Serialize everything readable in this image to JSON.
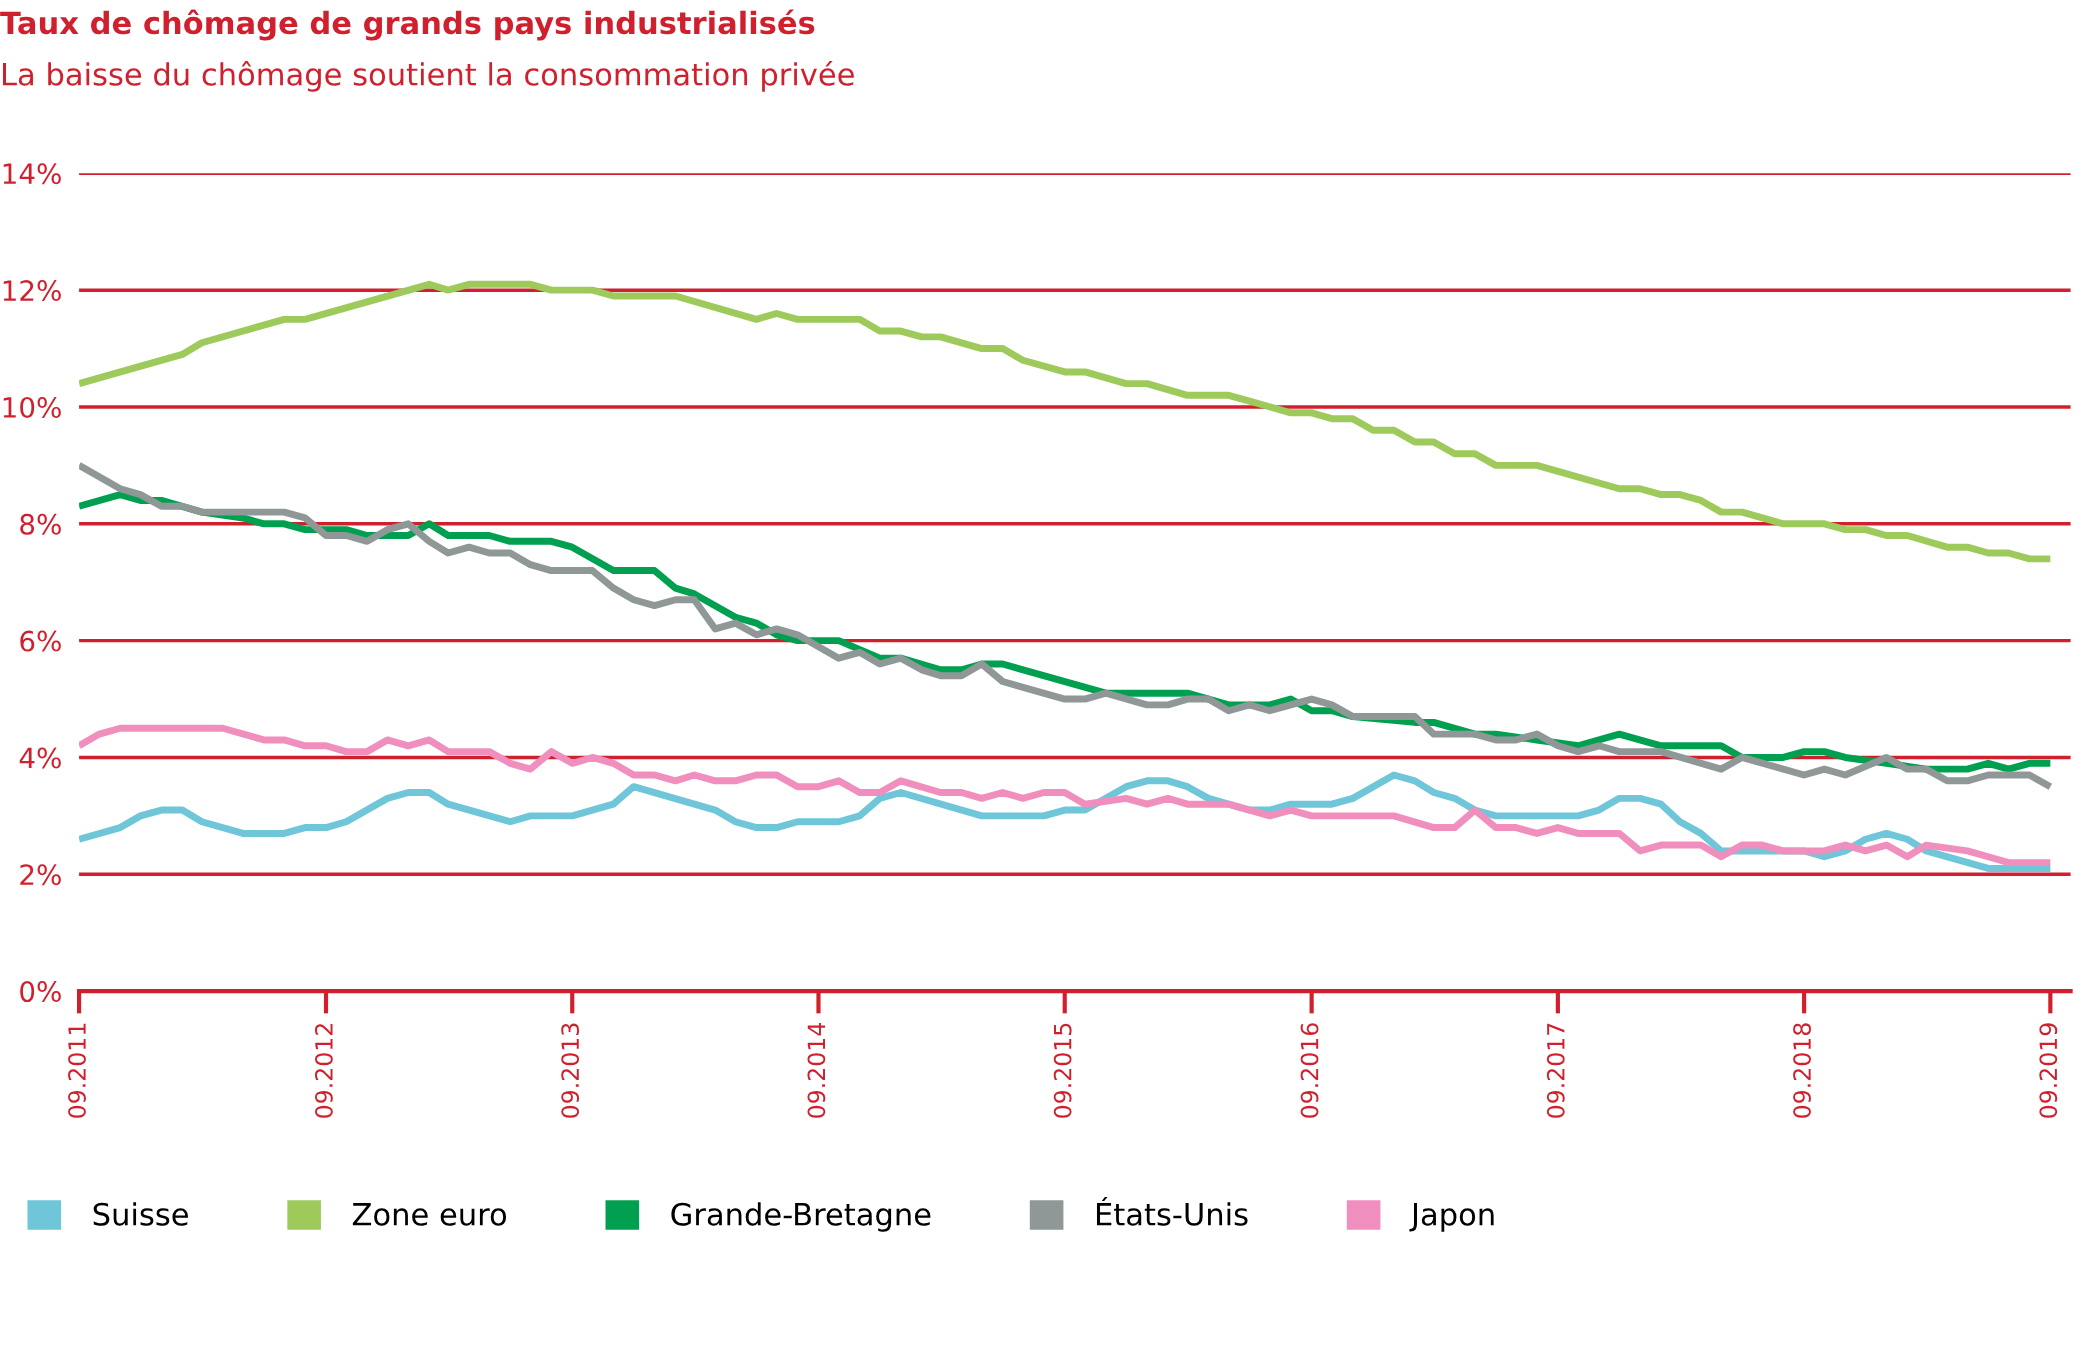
{
  "chart_data": {
    "type": "line",
    "title": "Taux de chômage de grands pays industrialisés",
    "subtitle": "La baisse du chômage soutient la consommation privée",
    "xlim": [
      "2011-09",
      "2019-10"
    ],
    "xticks": [
      {
        "value": "2011-09",
        "label": "09.2011"
      },
      {
        "value": "2012-09",
        "label": "09.2012"
      },
      {
        "value": "2013-09",
        "label": "09.2013"
      },
      {
        "value": "2014-09",
        "label": "09.2014"
      },
      {
        "value": "2015-09",
        "label": "09.2015"
      },
      {
        "value": "2016-09",
        "label": "09.2016"
      },
      {
        "value": "2017-09",
        "label": "09.2017"
      },
      {
        "value": "2018-09",
        "label": "09.2018"
      },
      {
        "value": "2019-09",
        "label": "09.2019"
      }
    ],
    "ylim": [
      0,
      14
    ],
    "yticks": [
      {
        "value": 0,
        "label": "0%"
      },
      {
        "value": 2,
        "label": "2%"
      },
      {
        "value": 4,
        "label": "4%"
      },
      {
        "value": 6,
        "label": "6%"
      },
      {
        "value": 8,
        "label": "8%"
      },
      {
        "value": 10,
        "label": "10%"
      },
      {
        "value": 12,
        "label": "12%"
      },
      {
        "value": 14,
        "label": "14%"
      }
    ],
    "grid": "y",
    "legend": "bottom",
    "marker": "none",
    "line_style": "solid",
    "series": [
      {
        "name": "Suisse",
        "color": "#6ec6d8",
        "x": [
          "2011-09",
          "2011-11",
          "2011-12",
          "2012-01",
          "2012-02",
          "2012-03",
          "2012-05",
          "2012-07",
          "2012-08",
          "2012-09",
          "2012-10",
          "2012-12",
          "2013-01",
          "2013-02",
          "2013-03",
          "2013-06",
          "2013-07",
          "2013-09",
          "2013-11",
          "2013-12",
          "2014-04",
          "2014-05",
          "2014-06",
          "2014-07",
          "2014-08",
          "2014-10",
          "2014-11",
          "2014-12",
          "2015-01",
          "2015-05",
          "2015-08",
          "2015-09",
          "2015-10",
          "2015-12",
          "2016-01",
          "2016-02",
          "2016-03",
          "2016-04",
          "2016-06",
          "2016-07",
          "2016-08",
          "2016-10",
          "2016-11",
          "2017-01",
          "2017-02",
          "2017-03",
          "2017-04",
          "2017-05",
          "2017-06",
          "2017-10",
          "2017-11",
          "2017-12",
          "2018-01",
          "2018-02",
          "2018-03",
          "2018-04",
          "2018-05",
          "2018-09",
          "2018-10",
          "2018-11",
          "2018-12",
          "2019-01",
          "2019-02",
          "2019-03",
          "2019-06",
          "2019-09"
        ],
        "values": [
          2.6,
          2.8,
          3.0,
          3.1,
          3.1,
          2.9,
          2.7,
          2.7,
          2.8,
          2.8,
          2.9,
          3.3,
          3.4,
          3.4,
          3.2,
          2.9,
          3.0,
          3.0,
          3.2,
          3.5,
          3.1,
          2.9,
          2.8,
          2.8,
          2.9,
          2.9,
          3.0,
          3.3,
          3.4,
          3.0,
          3.0,
          3.1,
          3.1,
          3.5,
          3.6,
          3.6,
          3.5,
          3.3,
          3.1,
          3.1,
          3.2,
          3.2,
          3.3,
          3.7,
          3.6,
          3.4,
          3.3,
          3.1,
          3.0,
          3.0,
          3.1,
          3.3,
          3.3,
          3.2,
          2.9,
          2.7,
          2.4,
          2.4,
          2.3,
          2.4,
          2.6,
          2.7,
          2.6,
          2.4,
          2.1,
          2.1
        ]
      },
      {
        "name": "Zone euro",
        "color": "#9dca5a",
        "x": [
          "2011-09",
          "2012-02",
          "2012-03",
          "2012-07",
          "2012-08",
          "2013-02",
          "2013-03",
          "2013-04",
          "2013-07",
          "2013-08",
          "2013-10",
          "2013-11",
          "2014-02",
          "2014-06",
          "2014-07",
          "2014-08",
          "2014-11",
          "2014-12",
          "2015-01",
          "2015-02",
          "2015-03",
          "2015-05",
          "2015-06",
          "2015-07",
          "2015-09",
          "2015-10",
          "2015-12",
          "2016-01",
          "2016-03",
          "2016-05",
          "2016-06",
          "2016-08",
          "2016-09",
          "2016-10",
          "2016-11",
          "2016-12",
          "2017-01",
          "2017-02",
          "2017-03",
          "2017-04",
          "2017-05",
          "2017-06",
          "2017-08",
          "2017-12",
          "2018-01",
          "2018-02",
          "2018-03",
          "2018-04",
          "2018-05",
          "2018-06",
          "2018-08",
          "2018-10",
          "2018-11",
          "2018-12",
          "2019-01",
          "2019-02",
          "2019-04",
          "2019-05",
          "2019-06",
          "2019-07",
          "2019-08",
          "2019-09"
        ],
        "values": [
          10.4,
          10.9,
          11.1,
          11.5,
          11.5,
          12.1,
          12.0,
          12.1,
          12.1,
          12.0,
          12.0,
          11.9,
          11.9,
          11.5,
          11.6,
          11.5,
          11.5,
          11.3,
          11.3,
          11.2,
          11.2,
          11.0,
          11.0,
          10.8,
          10.6,
          10.6,
          10.4,
          10.4,
          10.2,
          10.2,
          10.1,
          9.9,
          9.9,
          9.8,
          9.8,
          9.6,
          9.6,
          9.4,
          9.4,
          9.2,
          9.2,
          9.0,
          9.0,
          8.6,
          8.6,
          8.5,
          8.5,
          8.4,
          8.2,
          8.2,
          8.0,
          8.0,
          7.9,
          7.9,
          7.8,
          7.8,
          7.6,
          7.6,
          7.5,
          7.5,
          7.4,
          7.4
        ]
      },
      {
        "name": "Grande-Bretagne",
        "color": "#00a050",
        "x": [
          "2011-09",
          "2011-11",
          "2011-12",
          "2012-01",
          "2012-03",
          "2012-05",
          "2012-06",
          "2012-07",
          "2012-08",
          "2012-10",
          "2012-11",
          "2013-01",
          "2013-02",
          "2013-03",
          "2013-05",
          "2013-06",
          "2013-08",
          "2013-09",
          "2013-11",
          "2014-01",
          "2014-02",
          "2014-03",
          "2014-05",
          "2014-06",
          "2014-07",
          "2014-08",
          "2014-10",
          "2014-12",
          "2015-01",
          "2015-03",
          "2015-04",
          "2015-05",
          "2015-06",
          "2015-11",
          "2016-03",
          "2016-05",
          "2016-07",
          "2016-08",
          "2016-09",
          "2016-10",
          "2016-11",
          "2017-02",
          "2017-03",
          "2017-05",
          "2017-06",
          "2017-08",
          "2017-10",
          "2017-12",
          "2018-02",
          "2018-05",
          "2018-06",
          "2018-08",
          "2018-09",
          "2018-10",
          "2018-11",
          "2019-01",
          "2019-03",
          "2019-05",
          "2019-06",
          "2019-07",
          "2019-08",
          "2019-09"
        ],
        "values": [
          8.3,
          8.5,
          8.4,
          8.4,
          8.2,
          8.1,
          8.0,
          8.0,
          7.9,
          7.9,
          7.8,
          7.8,
          8.0,
          7.8,
          7.8,
          7.7,
          7.7,
          7.6,
          7.2,
          7.2,
          6.9,
          6.8,
          6.4,
          6.3,
          6.1,
          6.0,
          6.0,
          5.7,
          5.7,
          5.5,
          5.5,
          5.6,
          5.6,
          5.1,
          5.1,
          4.9,
          4.9,
          5.0,
          4.8,
          4.8,
          4.7,
          4.6,
          4.6,
          4.4,
          4.4,
          4.3,
          4.2,
          4.4,
          4.2,
          4.2,
          4.0,
          4.0,
          4.1,
          4.1,
          4.0,
          3.9,
          3.8,
          3.8,
          3.9,
          3.8,
          3.9,
          3.9
        ]
      },
      {
        "name": "États-Unis",
        "color": "#8f9797",
        "x": [
          "2011-09",
          "2011-11",
          "2011-12",
          "2012-01",
          "2012-02",
          "2012-03",
          "2012-07",
          "2012-08",
          "2012-09",
          "2012-10",
          "2012-11",
          "2012-12",
          "2013-01",
          "2013-02",
          "2013-03",
          "2013-04",
          "2013-05",
          "2013-06",
          "2013-07",
          "2013-08",
          "2013-10",
          "2013-11",
          "2013-12",
          "2014-01",
          "2014-02",
          "2014-03",
          "2014-04",
          "2014-05",
          "2014-06",
          "2014-07",
          "2014-08",
          "2014-10",
          "2014-11",
          "2014-12",
          "2015-01",
          "2015-02",
          "2015-03",
          "2015-04",
          "2015-05",
          "2015-06",
          "2015-09",
          "2015-10",
          "2015-11",
          "2016-01",
          "2016-02",
          "2016-03",
          "2016-04",
          "2016-05",
          "2016-06",
          "2016-07",
          "2016-08",
          "2016-09",
          "2016-10",
          "2016-11",
          "2017-02",
          "2017-03",
          "2017-05",
          "2017-06",
          "2017-07",
          "2017-08",
          "2017-09",
          "2017-10",
          "2017-11",
          "2017-12",
          "2018-02",
          "2018-05",
          "2018-06",
          "2018-09",
          "2018-10",
          "2018-11",
          "2019-01",
          "2019-02",
          "2019-03",
          "2019-04",
          "2019-05",
          "2019-06",
          "2019-08",
          "2019-09"
        ],
        "values": [
          9.0,
          8.6,
          8.5,
          8.3,
          8.3,
          8.2,
          8.2,
          8.1,
          7.8,
          7.8,
          7.7,
          7.9,
          8.0,
          7.7,
          7.5,
          7.6,
          7.5,
          7.5,
          7.3,
          7.2,
          7.2,
          6.9,
          6.7,
          6.6,
          6.7,
          6.7,
          6.2,
          6.3,
          6.1,
          6.2,
          6.1,
          5.7,
          5.8,
          5.6,
          5.7,
          5.5,
          5.4,
          5.4,
          5.6,
          5.3,
          5.0,
          5.0,
          5.1,
          4.9,
          4.9,
          5.0,
          5.0,
          4.8,
          4.9,
          4.8,
          4.9,
          5.0,
          4.9,
          4.7,
          4.7,
          4.4,
          4.4,
          4.3,
          4.3,
          4.4,
          4.2,
          4.1,
          4.2,
          4.1,
          4.1,
          3.8,
          4.0,
          3.7,
          3.8,
          3.7,
          4.0,
          3.8,
          3.8,
          3.6,
          3.6,
          3.7,
          3.7,
          3.5
        ]
      },
      {
        "name": "Japon",
        "color": "#f08fbd",
        "x": [
          "2011-09",
          "2011-10",
          "2011-11",
          "2012-04",
          "2012-06",
          "2012-07",
          "2012-08",
          "2012-09",
          "2012-10",
          "2012-11",
          "2012-12",
          "2013-01",
          "2013-02",
          "2013-03",
          "2013-05",
          "2013-06",
          "2013-07",
          "2013-08",
          "2013-09",
          "2013-10",
          "2013-11",
          "2013-12",
          "2014-01",
          "2014-02",
          "2014-03",
          "2014-04",
          "2014-05",
          "2014-06",
          "2014-07",
          "2014-08",
          "2014-09",
          "2014-10",
          "2014-11",
          "2014-12",
          "2015-01",
          "2015-03",
          "2015-04",
          "2015-05",
          "2015-06",
          "2015-07",
          "2015-08",
          "2015-09",
          "2015-10",
          "2015-12",
          "2016-01",
          "2016-02",
          "2016-03",
          "2016-05",
          "2016-07",
          "2016-08",
          "2016-09",
          "2017-01",
          "2017-03",
          "2017-04",
          "2017-05",
          "2017-06",
          "2017-07",
          "2017-08",
          "2017-09",
          "2017-10",
          "2017-12",
          "2018-01",
          "2018-02",
          "2018-04",
          "2018-05",
          "2018-06",
          "2018-07",
          "2018-08",
          "2018-10",
          "2018-11",
          "2018-12",
          "2019-01",
          "2019-02",
          "2019-03",
          "2019-05",
          "2019-06",
          "2019-07",
          "2019-09"
        ],
        "values": [
          4.2,
          4.4,
          4.5,
          4.5,
          4.3,
          4.3,
          4.2,
          4.2,
          4.1,
          4.1,
          4.3,
          4.2,
          4.3,
          4.1,
          4.1,
          3.9,
          3.8,
          4.1,
          3.9,
          4.0,
          3.9,
          3.7,
          3.7,
          3.6,
          3.7,
          3.6,
          3.6,
          3.7,
          3.7,
          3.5,
          3.5,
          3.6,
          3.4,
          3.4,
          3.6,
          3.4,
          3.4,
          3.3,
          3.4,
          3.3,
          3.4,
          3.4,
          3.2,
          3.3,
          3.2,
          3.3,
          3.2,
          3.2,
          3.0,
          3.1,
          3.0,
          3.0,
          2.8,
          2.8,
          3.1,
          2.8,
          2.8,
          2.7,
          2.8,
          2.7,
          2.7,
          2.4,
          2.5,
          2.5,
          2.3,
          2.5,
          2.5,
          2.4,
          2.4,
          2.5,
          2.4,
          2.5,
          2.3,
          2.5,
          2.4,
          2.3,
          2.2,
          2.2
        ]
      }
    ]
  }
}
